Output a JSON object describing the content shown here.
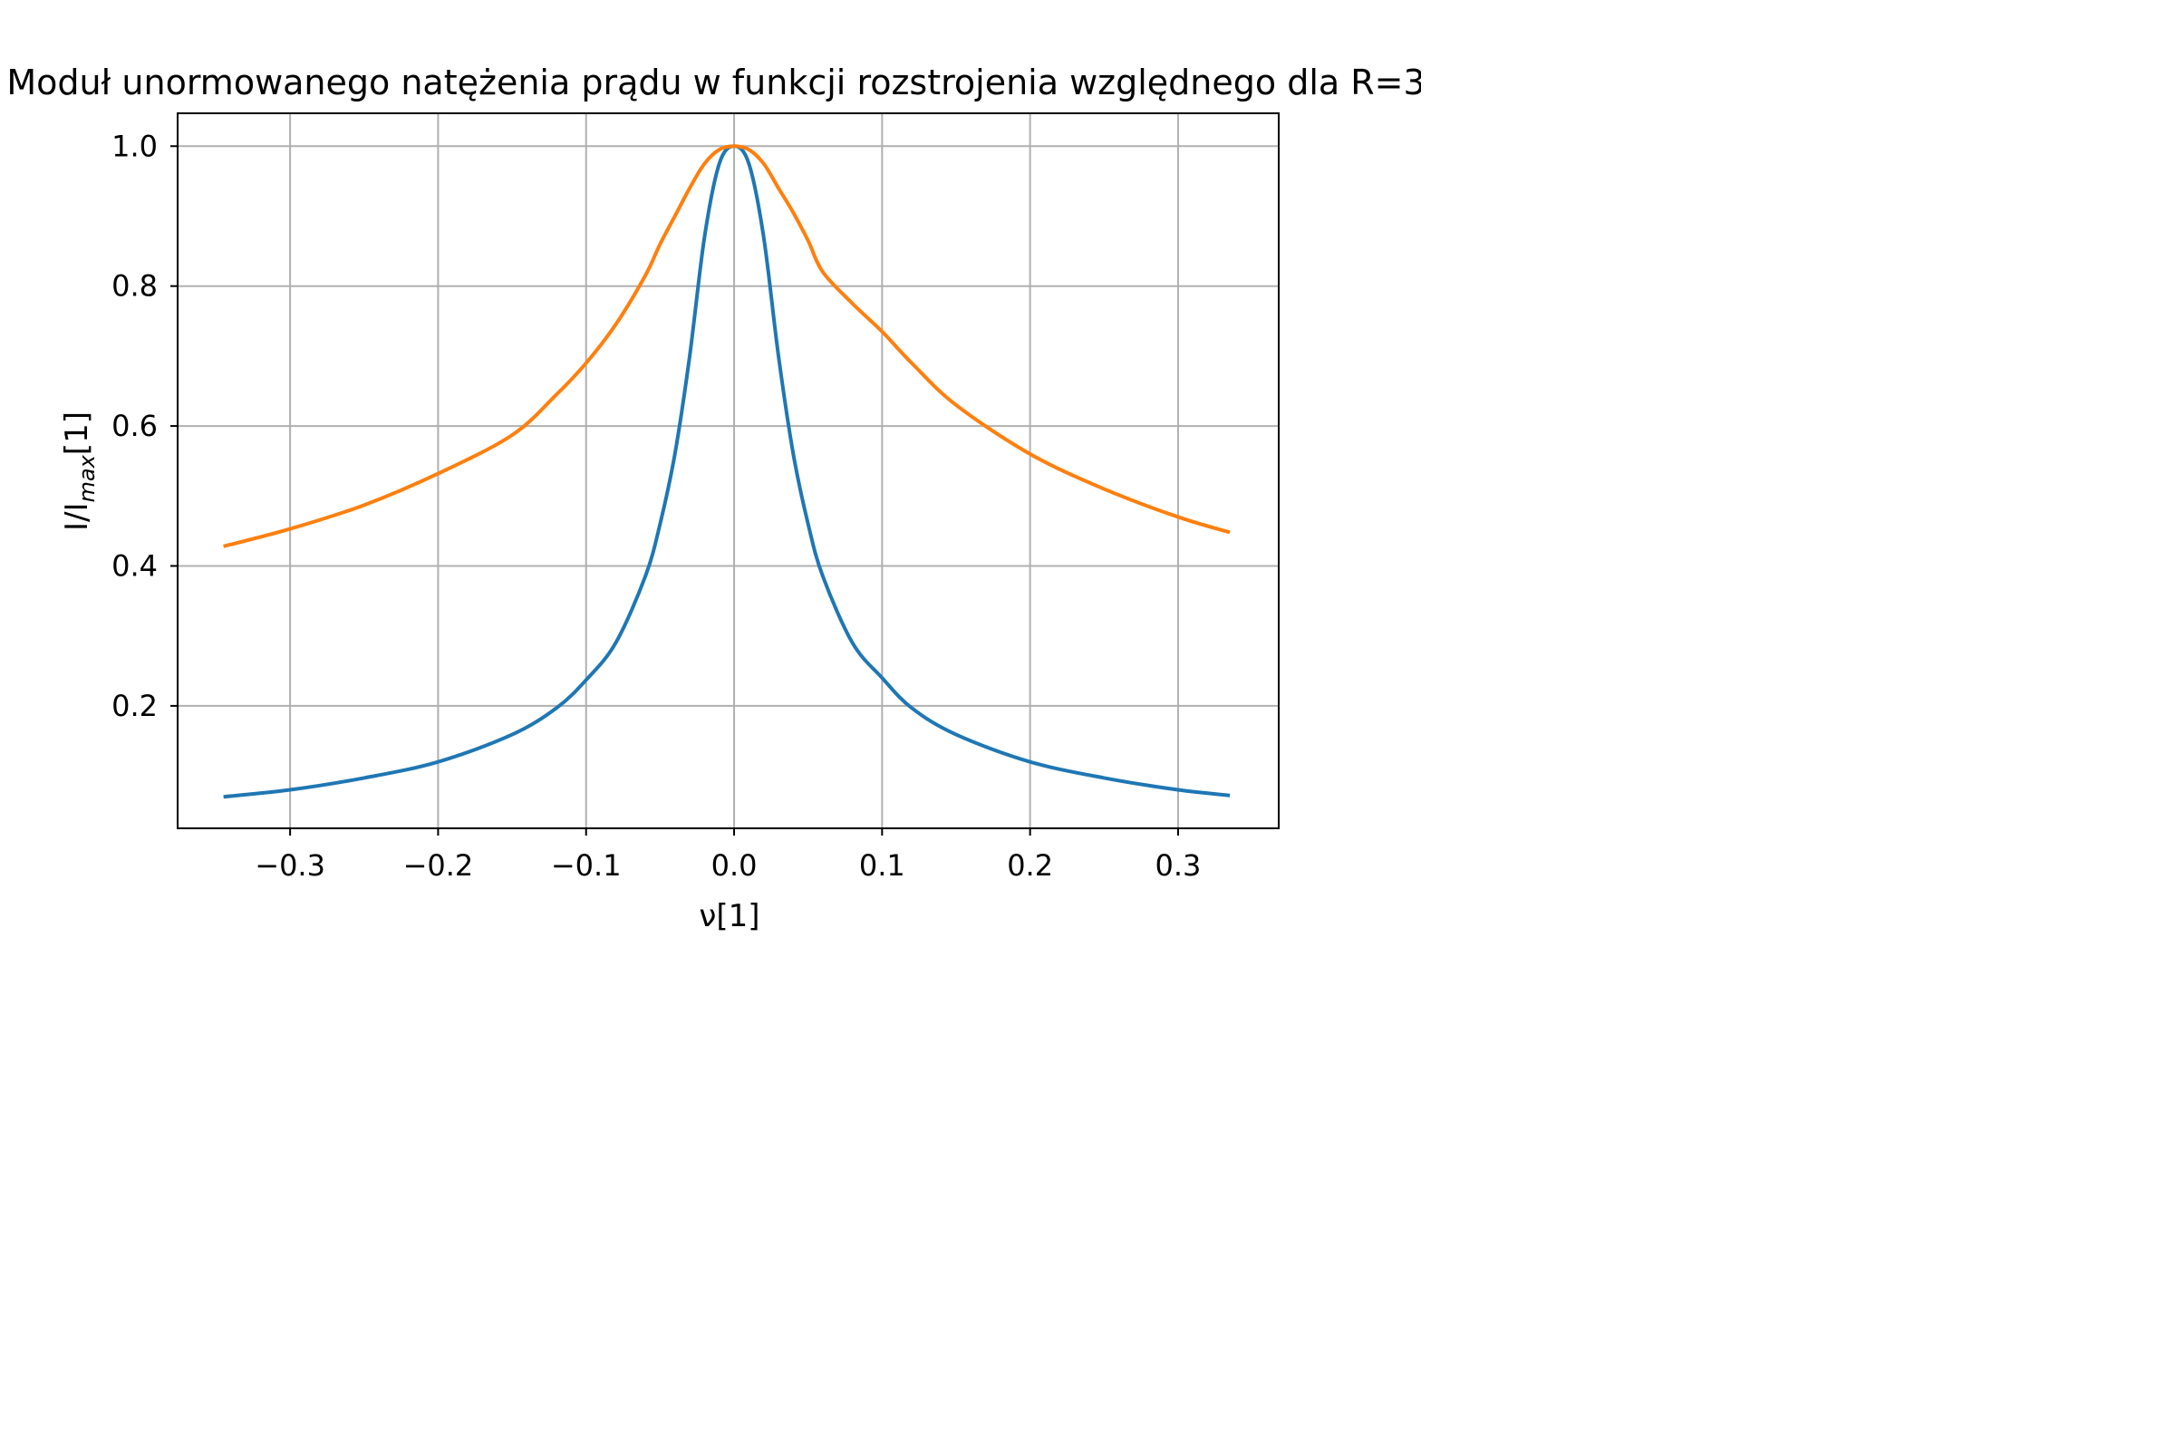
{
  "chart_data": {
    "type": "line",
    "title": "Moduł unormowanego natężenia prądu w funkcji rozstrojenia względnego dla R=3",
    "xlabel": "ν[1]",
    "ylabel": "I/I",
    "ylabel_sub": "max",
    "ylabel_suffix": "[1]",
    "xlim": [
      -0.376,
      0.368
    ],
    "ylim": [
      0.025,
      1.047
    ],
    "grid": true,
    "xticks": [
      -0.3,
      -0.2,
      -0.1,
      0.0,
      0.1,
      0.2,
      0.3
    ],
    "xtick_labels": [
      "−0.3",
      "−0.2",
      "−0.1",
      "0.0",
      "0.1",
      "0.2",
      "0.3"
    ],
    "yticks": [
      0.2,
      0.4,
      0.6,
      0.8,
      1.0
    ],
    "ytick_labels": [
      "0.2",
      "0.4",
      "0.6",
      "0.8",
      "1.0"
    ],
    "series": [
      {
        "color": "#1f77b4",
        "x": [
          -0.345,
          -0.3,
          -0.25,
          -0.2,
          -0.15,
          -0.12,
          -0.1,
          -0.08,
          -0.06,
          -0.05,
          -0.04,
          -0.03,
          -0.02,
          -0.01,
          0.0,
          0.01,
          0.02,
          0.03,
          0.04,
          0.05,
          0.06,
          0.08,
          0.1,
          0.12,
          0.15,
          0.2,
          0.25,
          0.3,
          0.335
        ],
        "values": [
          0.07,
          0.08,
          0.097,
          0.12,
          0.159,
          0.197,
          0.237,
          0.29,
          0.385,
          0.46,
          0.56,
          0.7,
          0.87,
          0.975,
          1.0,
          0.975,
          0.87,
          0.7,
          0.56,
          0.46,
          0.385,
          0.29,
          0.24,
          0.197,
          0.159,
          0.12,
          0.097,
          0.08,
          0.072
        ]
      },
      {
        "color": "#ff7f0e",
        "x": [
          -0.345,
          -0.3,
          -0.25,
          -0.2,
          -0.15,
          -0.12,
          -0.1,
          -0.08,
          -0.06,
          -0.05,
          -0.04,
          -0.03,
          -0.02,
          -0.01,
          0.0,
          0.01,
          0.02,
          0.03,
          0.04,
          0.05,
          0.06,
          0.08,
          0.1,
          0.12,
          0.15,
          0.2,
          0.25,
          0.3,
          0.335
        ],
        "values": [
          0.428,
          0.453,
          0.487,
          0.532,
          0.587,
          0.645,
          0.69,
          0.745,
          0.815,
          0.86,
          0.9,
          0.94,
          0.975,
          0.995,
          1.0,
          0.995,
          0.975,
          0.94,
          0.905,
          0.865,
          0.82,
          0.775,
          0.735,
          0.69,
          0.63,
          0.56,
          0.51,
          0.47,
          0.448
        ]
      }
    ]
  }
}
